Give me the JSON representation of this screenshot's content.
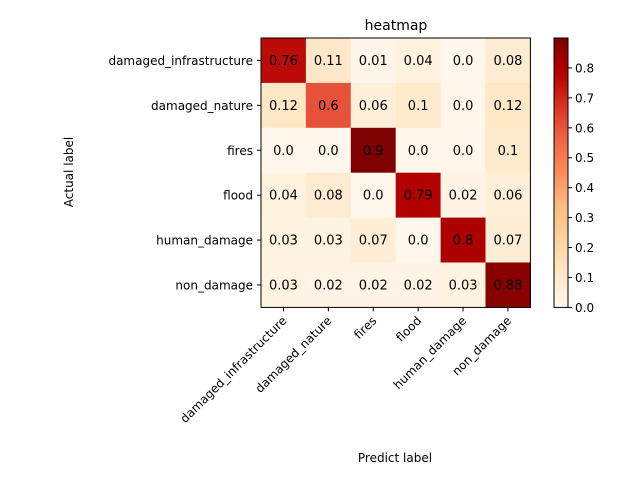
{
  "chart_data": {
    "type": "heatmap",
    "title": "heatmap",
    "xlabel": "Predict label",
    "ylabel": "Actual label",
    "x_categories": [
      "damaged_infrastructure",
      "damaged_nature",
      "fires",
      "flood",
      "human_damage",
      "non_damage"
    ],
    "y_categories": [
      "damaged_infrastructure",
      "damaged_nature",
      "fires",
      "flood",
      "human_damage",
      "non_damage"
    ],
    "matrix": [
      [
        0.76,
        0.11,
        0.01,
        0.04,
        0.0,
        0.08
      ],
      [
        0.12,
        0.6,
        0.06,
        0.1,
        0.0,
        0.12
      ],
      [
        0.0,
        0.0,
        0.9,
        0.0,
        0.0,
        0.1
      ],
      [
        0.04,
        0.08,
        0.0,
        0.79,
        0.02,
        0.06
      ],
      [
        0.03,
        0.03,
        0.07,
        0.0,
        0.8,
        0.07
      ],
      [
        0.03,
        0.02,
        0.02,
        0.02,
        0.03,
        0.88
      ]
    ],
    "labels": [
      [
        "0.76",
        "0.11",
        "0.01",
        "0.04",
        "0.0",
        "0.08"
      ],
      [
        "0.12",
        "0.6",
        "0.06",
        "0.1",
        "0.0",
        "0.12"
      ],
      [
        "0.0",
        "0.0",
        "0.9",
        "0.0",
        "0.0",
        "0.1"
      ],
      [
        "0.04",
        "0.08",
        "0.0",
        "0.79",
        "0.02",
        "0.06"
      ],
      [
        "0.03",
        "0.03",
        "0.07",
        "0.0",
        "0.8",
        "0.07"
      ],
      [
        "0.03",
        "0.02",
        "0.02",
        "0.02",
        "0.03",
        "0.88"
      ]
    ],
    "colormap": "OrRd",
    "vmin": 0.0,
    "vmax": 0.9,
    "colorbar_ticks": [
      "0.0",
      "0.1",
      "0.2",
      "0.3",
      "0.4",
      "0.5",
      "0.6",
      "0.7",
      "0.8"
    ],
    "grid": false
  }
}
